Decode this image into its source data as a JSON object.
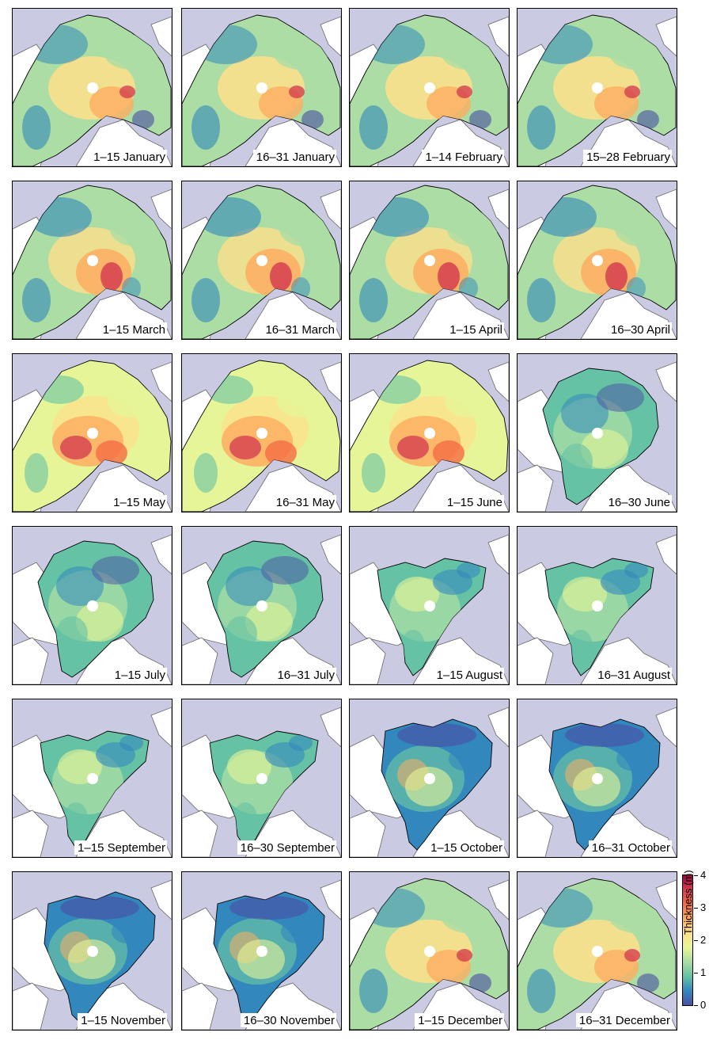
{
  "figure": {
    "panels": [
      {
        "label": "1–15 January",
        "state": "winter"
      },
      {
        "label": "16–31 January",
        "state": "winter"
      },
      {
        "label": "1–14 February",
        "state": "winter"
      },
      {
        "label": "15–28 February",
        "state": "winter"
      },
      {
        "label": "1–15 March",
        "state": "spring"
      },
      {
        "label": "16–31 March",
        "state": "spring"
      },
      {
        "label": "1–15 April",
        "state": "spring"
      },
      {
        "label": "16–30 April",
        "state": "spring"
      },
      {
        "label": "1–15 May",
        "state": "thick"
      },
      {
        "label": "16–31 May",
        "state": "thick"
      },
      {
        "label": "1–15 June",
        "state": "thick"
      },
      {
        "label": "16–30 June",
        "state": "melt"
      },
      {
        "label": "1–15 July",
        "state": "melt"
      },
      {
        "label": "16–31 July",
        "state": "melt"
      },
      {
        "label": "1–15 August",
        "state": "minimum"
      },
      {
        "label": "16–31 August",
        "state": "minimum"
      },
      {
        "label": "1–15 September",
        "state": "minimum"
      },
      {
        "label": "16–30 September",
        "state": "minimum"
      },
      {
        "label": "1–15 October",
        "state": "freeze"
      },
      {
        "label": "16–31 October",
        "state": "freeze"
      },
      {
        "label": "1–15 November",
        "state": "freeze"
      },
      {
        "label": "16–30 November",
        "state": "freeze"
      },
      {
        "label": "1–15 December",
        "state": "winter"
      },
      {
        "label": "16–31 December",
        "state": "winter"
      }
    ],
    "colorbar": {
      "title": "Thickness (m)",
      "ticks": [
        "0",
        "1",
        "2",
        "3",
        "4"
      ],
      "range": [
        0,
        4
      ],
      "colors": [
        "#4a4fa3",
        "#3288bd",
        "#66c2a5",
        "#abdda4",
        "#e6f598",
        "#fee08b",
        "#fdae61",
        "#f46d43",
        "#d53e4f",
        "#9e0142"
      ]
    },
    "colors": {
      "ocean": "#cbcae3",
      "land": "#ffffff",
      "coastline": "#666666",
      "pole_hole": "#ffffff"
    }
  }
}
